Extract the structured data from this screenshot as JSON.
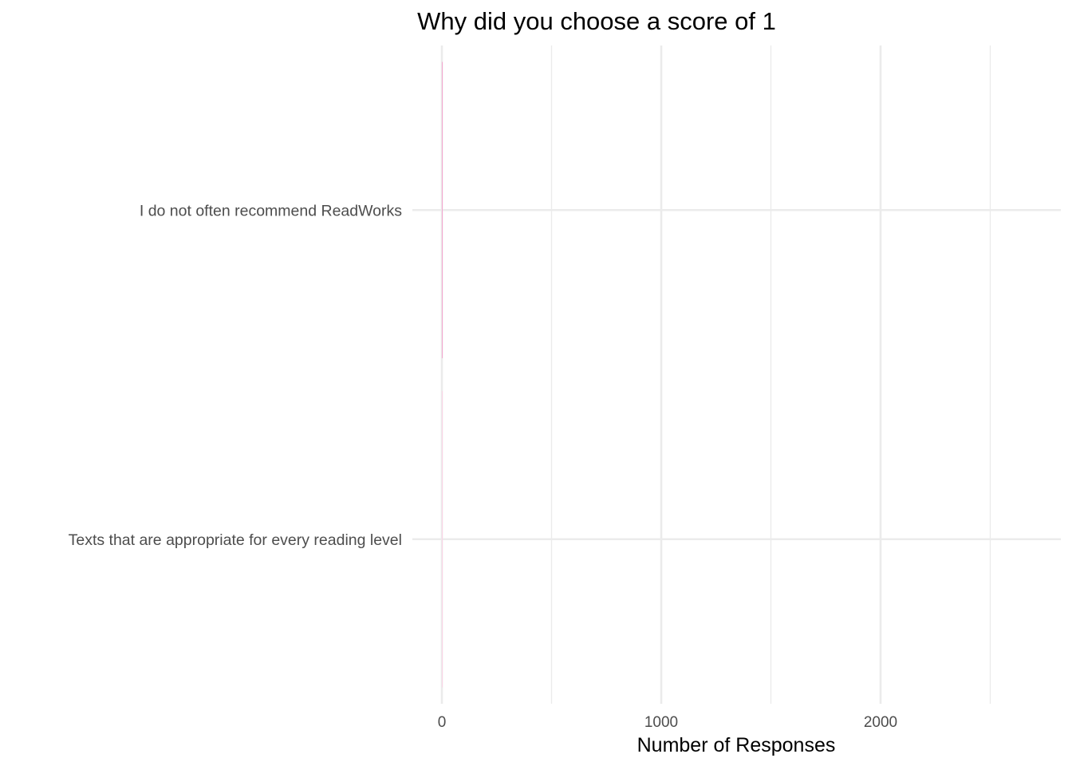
{
  "chart_data": {
    "type": "bar",
    "orientation": "horizontal",
    "title": "Why did you choose a score of 1",
    "xlabel": "Number of Responses",
    "ylabel": "",
    "categories": [
      "I do not often recommend ReadWorks",
      "Texts that are appropriate for every reading level"
    ],
    "values": [
      1,
      1
    ],
    "xlim": [
      0,
      2750
    ],
    "x_major_ticks": [
      0,
      1000,
      2000
    ],
    "x_tick_labels": [
      "0",
      "1000",
      "2000"
    ],
    "x_minor_ticks": [
      500,
      1500,
      2500
    ],
    "grid": true,
    "legend": "none",
    "colors": {
      "bars": [
        "#f4a6cf",
        "#fbd3e6"
      ],
      "grid": "#ebebeb",
      "tick_text": "#4d4d4d",
      "title_text": "#000000"
    }
  }
}
